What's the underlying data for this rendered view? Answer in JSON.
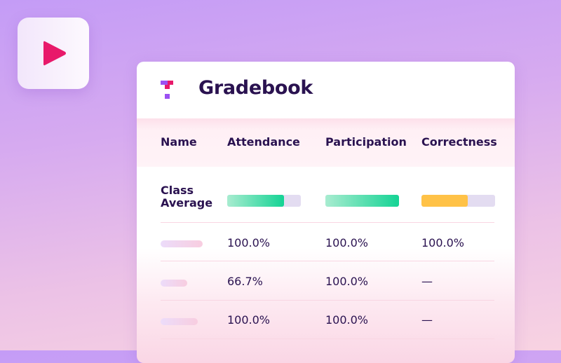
{
  "app_icon": {
    "icon": "play-icon",
    "color": "#e8196a"
  },
  "header": {
    "title": "Gradebook",
    "logo": "gradebook-logo-icon"
  },
  "table": {
    "columns": [
      "Name",
      "Attendance",
      "Participation",
      "Correctness"
    ],
    "class_average": {
      "label_line1": "Class",
      "label_line2": "Average",
      "attendance_pct": 77,
      "participation_pct": 100,
      "correctness_pct": 63
    },
    "rows": [
      {
        "name_redacted_width": 60,
        "attendance": "100.0%",
        "participation": "100.0%",
        "correctness": "100.0%"
      },
      {
        "name_redacted_width": 38,
        "attendance": "66.7%",
        "participation": "100.0%",
        "correctness": "—"
      },
      {
        "name_redacted_width": 53,
        "attendance": "100.0%",
        "participation": "100.0%",
        "correctness": "—"
      }
    ]
  },
  "colors": {
    "accent_pink": "#e8196a",
    "accent_purple": "#9b51f2",
    "text_dark": "#2a1250",
    "bar_green": "#14d394",
    "bar_yellow": "#ffc247",
    "bar_track": "#e3dcf1"
  }
}
